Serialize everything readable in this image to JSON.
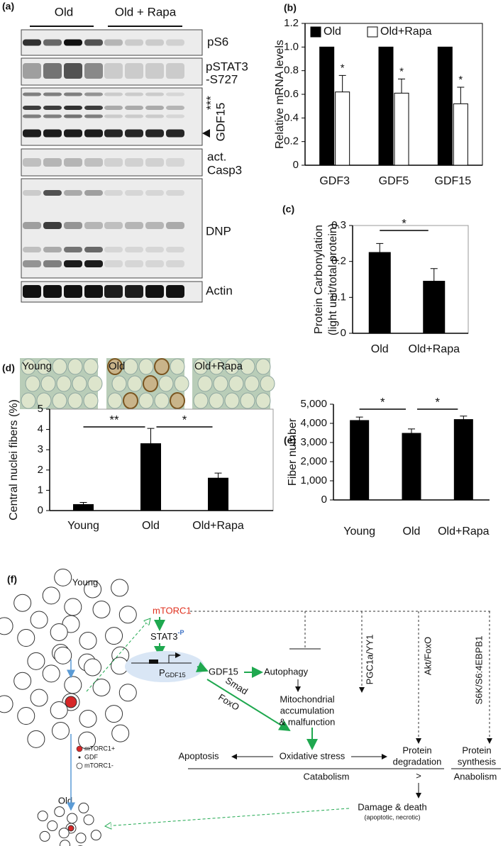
{
  "figure": {
    "panel_labels": [
      "(a)",
      "(b)",
      "(c)",
      "(d)",
      "(e)",
      "(f)"
    ],
    "blot": {
      "groups": [
        "Old",
        "Old + Rapa"
      ],
      "labels": [
        "pS6",
        "pSTAT3",
        "-S727",
        "***",
        "GDF15",
        "act.",
        "Casp3",
        "DNP",
        "Actin"
      ]
    },
    "micrographs": [
      "Young",
      "Old",
      "Old+Rapa"
    ],
    "diagram": {
      "young": "Young",
      "old": "Old",
      "legend": [
        "mTORC1+",
        "GDF",
        "mTORC1-"
      ],
      "mtorc1": "mTORC1",
      "stat3": "STAT3",
      "phospho": "-P",
      "promoter": "P",
      "promoter_sub": "GDF15",
      "gdf15": "GDF15",
      "autophagy": "Autophagy",
      "smad": "Smad",
      "foxo": "FoxO",
      "mito": [
        "Mitochondrial",
        "accumulation",
        "& malfunction"
      ],
      "pathways": [
        "PGC1a/YY1",
        "Akt/FoxO",
        "S6K/S6:4EBPB1"
      ],
      "apoptosis": "Apoptosis",
      "oxidative": "Oxidative stress",
      "degradation": [
        "Protein",
        "degradation"
      ],
      "synthesis": [
        "Protein",
        "synthesis"
      ],
      "catabolism": "Catabolism",
      "gt": ">",
      "anabolism": "Anabolism",
      "damage": "Damage & death",
      "damage_note": "(apoptotic, necrotic)"
    }
  },
  "chart_data": [
    {
      "type": "bar",
      "ylabel": "Relative mRNA levels",
      "categories": [
        "GDF3",
        "GDF5",
        "GDF15"
      ],
      "series": [
        {
          "name": "Old",
          "color": "#000000",
          "values": [
            1,
            1,
            1
          ]
        },
        {
          "name": "Old+Rapa",
          "color": "#ffffff",
          "values": [
            0.62,
            0.61,
            0.52
          ],
          "errors": [
            0.14,
            0.12,
            0.14
          ]
        }
      ],
      "ylim": [
        0,
        1.2
      ],
      "yticks": [
        0,
        0.2,
        0.4,
        0.6,
        0.8,
        {
          "value": 1,
          "label": "1.0"
        },
        1.2
      ],
      "annotations": [
        "*",
        "*",
        "*"
      ]
    },
    {
      "type": "bar",
      "ylabel": [
        "Protein Carbonylation",
        "(light unit/total protein)"
      ],
      "categories": [
        "Old",
        "Old+Rapa"
      ],
      "values": [
        0.225,
        0.145
      ],
      "errors": [
        0.025,
        0.035
      ],
      "color": "#000000",
      "ylim": [
        0,
        0.3
      ],
      "yticks": [
        0,
        0.1,
        0.2,
        0.3
      ],
      "annotations": [
        "*"
      ]
    },
    {
      "type": "bar",
      "ylabel": "Central nuclei fibers (%)",
      "categories": [
        "Young",
        "Old",
        "Old+Rapa"
      ],
      "values": [
        0.3,
        3.3,
        1.6
      ],
      "errors": [
        0.1,
        0.75,
        0.25
      ],
      "color": "#000000",
      "ylim": [
        0,
        5
      ],
      "yticks": [
        0,
        1,
        2,
        3,
        4,
        5
      ],
      "annotations": [
        "**",
        "*"
      ]
    },
    {
      "type": "bar",
      "ylabel": "Fiber number",
      "categories": [
        "Young",
        "Old",
        "Old+Rapa"
      ],
      "values": [
        4150,
        3480,
        4200
      ],
      "errors": [
        180,
        230,
        180
      ],
      "color": "#000000",
      "ylim": [
        0,
        5000
      ],
      "yticks": [
        0,
        {
          "value": 1000,
          "label": "1,000"
        },
        {
          "value": 2000,
          "label": "2,000"
        },
        {
          "value": 3000,
          "label": "3,000"
        },
        {
          "value": 4000,
          "label": "4,000"
        },
        {
          "value": 5000,
          "label": "5,000"
        }
      ],
      "annotations": [
        "*",
        "*"
      ]
    }
  ]
}
